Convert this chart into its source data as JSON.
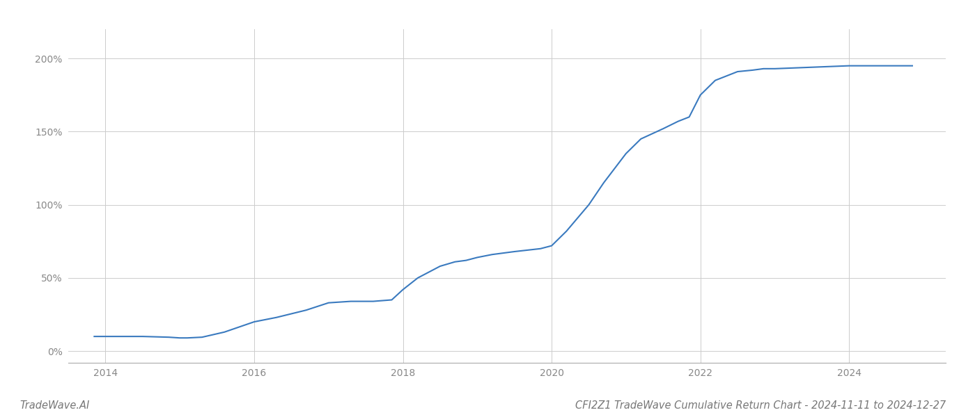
{
  "x_values": [
    2013.85,
    2014.0,
    2014.5,
    2014.85,
    2015.0,
    2015.1,
    2015.3,
    2015.6,
    2016.0,
    2016.3,
    2016.7,
    2017.0,
    2017.3,
    2017.6,
    2017.85,
    2018.0,
    2018.2,
    2018.5,
    2018.7,
    2018.85,
    2019.0,
    2019.2,
    2019.5,
    2019.85,
    2020.0,
    2020.2,
    2020.5,
    2020.7,
    2020.85,
    2021.0,
    2021.2,
    2021.5,
    2021.7,
    2021.85,
    2022.0,
    2022.2,
    2022.5,
    2022.7,
    2022.85,
    2023.0,
    2023.5,
    2024.0,
    2024.5,
    2024.85
  ],
  "y_values": [
    10,
    10,
    10,
    9.5,
    9,
    9,
    9.5,
    13,
    20,
    23,
    28,
    33,
    34,
    34,
    35,
    42,
    50,
    58,
    61,
    62,
    64,
    66,
    68,
    70,
    72,
    82,
    100,
    115,
    125,
    135,
    145,
    152,
    157,
    160,
    175,
    185,
    191,
    192,
    193,
    193,
    194,
    195,
    195,
    195
  ],
  "line_color": "#3a7abf",
  "line_width": 1.5,
  "title": "CFI2Z1 TradeWave Cumulative Return Chart - 2024-11-11 to 2024-12-27",
  "title_fontsize": 10.5,
  "title_color": "#777777",
  "xlabel": "",
  "ylabel": "",
  "xlim": [
    2013.5,
    2025.3
  ],
  "ylim": [
    -8,
    220
  ],
  "yticks": [
    0,
    50,
    100,
    150,
    200
  ],
  "ytick_labels": [
    "0%",
    "50%",
    "100%",
    "150%",
    "200%"
  ],
  "xticks": [
    2014,
    2016,
    2018,
    2020,
    2022,
    2024
  ],
  "xtick_labels": [
    "2014",
    "2016",
    "2018",
    "2020",
    "2022",
    "2024"
  ],
  "grid_color": "#cccccc",
  "grid_linewidth": 0.7,
  "background_color": "#ffffff",
  "watermark_text": "TradeWave.AI",
  "watermark_fontsize": 10.5,
  "watermark_color": "#777777"
}
